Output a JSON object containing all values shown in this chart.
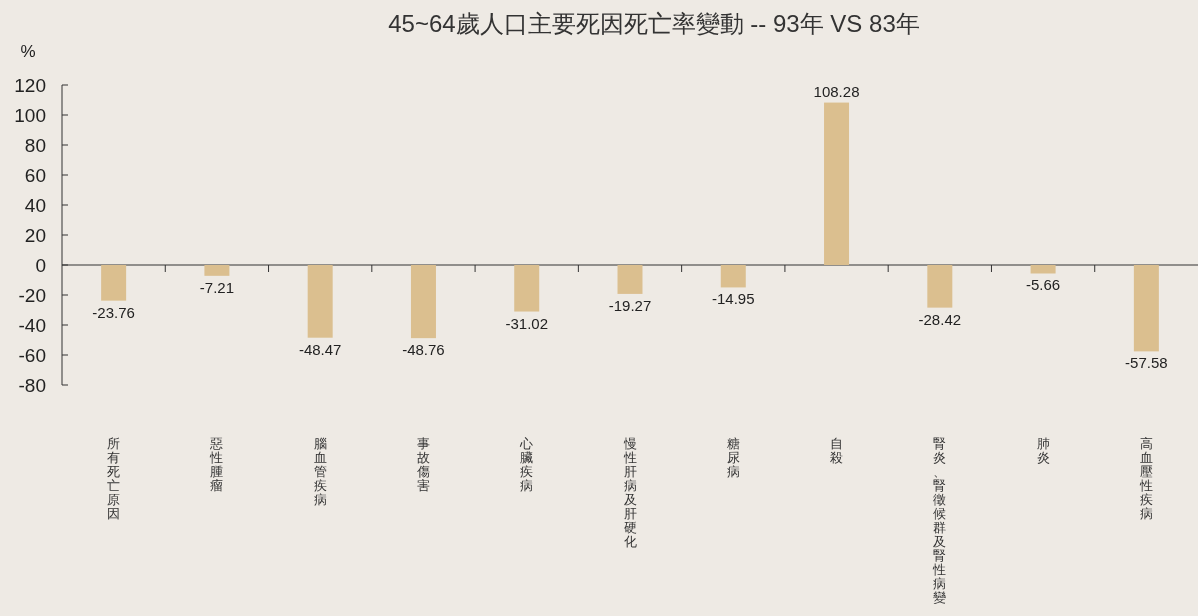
{
  "chart_data": {
    "type": "bar",
    "title": "45~64歲人口主要死因死亡率變動 -- 93年 VS 83年",
    "ylabel": "%",
    "categories": [
      "所有死亡原因",
      "惡性腫瘤",
      "腦血管疾病",
      "事故傷害",
      "心臟疾病",
      "慢性肝病及肝硬化",
      "糖尿病",
      "自殺",
      "腎炎、腎徵候群及腎性病變",
      "肺炎",
      "高血壓性疾病"
    ],
    "values": [
      -23.76,
      -7.21,
      -48.47,
      -48.76,
      -31.02,
      -19.27,
      -14.95,
      108.28,
      -28.42,
      -5.66,
      -57.58
    ],
    "color": "#dbbf8f",
    "ylim": [
      -80,
      120
    ],
    "yticks": [
      -80,
      -60,
      -40,
      -20,
      0,
      20,
      40,
      60,
      80,
      100,
      120
    ],
    "data_labels": true
  }
}
